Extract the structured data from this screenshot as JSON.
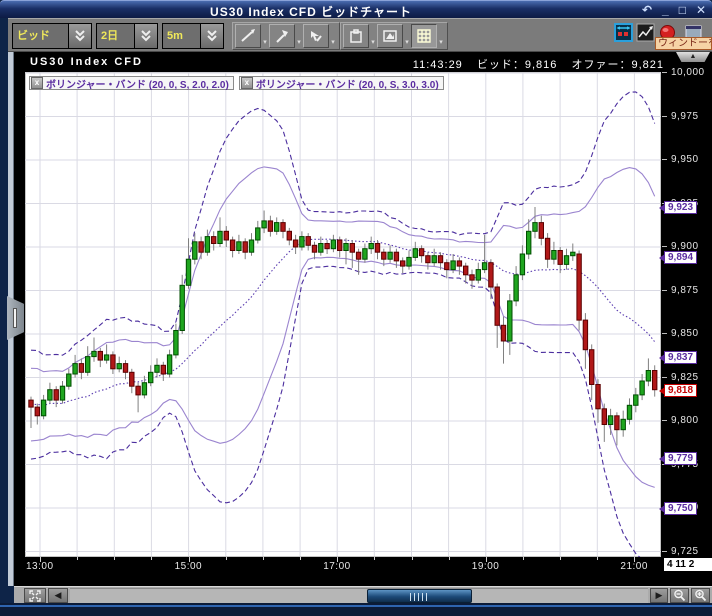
{
  "window": {
    "title": "US30 Index CFD ビッドチャート",
    "controls": {
      "restore": "↶",
      "minimize": "_",
      "maximize": "□",
      "close": "✕"
    }
  },
  "toolbar": {
    "dropdowns": [
      {
        "label": "ビッド"
      },
      {
        "label": "2日"
      },
      {
        "label": "5m"
      }
    ],
    "tooltip": "ウィンドーを"
  },
  "chart_header": {
    "symbol": "US30 Index CFD",
    "time": "11:43:29",
    "bid": "ビッド：9,816",
    "offer": "オファー：9,821",
    "collapse_arrow": "▲"
  },
  "indicators": [
    {
      "label": "ボリンジャー・バンド (20, 0, S, 2.0, 2.0)",
      "close": "x"
    },
    {
      "label": "ボリンジャー・バンド (20, 0, S, 3.0, 3.0)",
      "close": "x"
    }
  ],
  "date_box": "4 11 2",
  "scrollbar": {
    "left_arrow": "◀",
    "right_arrow": "▶"
  },
  "colors": {
    "up": "#1fa51f",
    "up_border": "#004d00",
    "down": "#b01818",
    "down_border": "#5a0000",
    "wick": "#808080",
    "band2": "#9b85cf",
    "band3": "#4b2e9e",
    "mid": "#5a3cb0",
    "grid": "#dadae4",
    "marker_band": "#5a2ca0",
    "marker_current": "#c40000",
    "accent_yellow": "#f0e95a"
  },
  "chart_data": {
    "type": "candlestick",
    "title": "US30 Index CFD ビッドチャート",
    "start_time": "13:00",
    "interval_min": 5,
    "x_ticks": [
      "13:00",
      "15:00",
      "17:00",
      "19:00",
      "21:00"
    ],
    "y_ticks": [
      "10,000",
      "9,975",
      "9,950",
      "9,925",
      "9,900",
      "9,875",
      "9,850",
      "9,825",
      "9,800",
      "9,775",
      "9,750",
      "9,725"
    ],
    "y_range": [
      9725,
      10000
    ],
    "grid": true,
    "bollinger": {
      "period": 20,
      "ma_type": "S",
      "deviations": [
        2.0,
        3.0
      ]
    },
    "pre_closes": [
      9820,
      9800,
      9825,
      9795,
      9810,
      9822,
      9798,
      9815,
      9805,
      9828,
      9793,
      9812,
      9820,
      9797,
      9808,
      9824,
      9799,
      9816,
      9803,
      9810
    ],
    "candles": [
      [
        9812,
        9814,
        9796,
        9808
      ],
      [
        9808,
        9810,
        9798,
        9803
      ],
      [
        9803,
        9815,
        9801,
        9812
      ],
      [
        9812,
        9822,
        9810,
        9818
      ],
      [
        9818,
        9820,
        9808,
        9812
      ],
      [
        9812,
        9823,
        9810,
        9820
      ],
      [
        9820,
        9830,
        9818,
        9827
      ],
      [
        9827,
        9838,
        9825,
        9833
      ],
      [
        9833,
        9836,
        9824,
        9828
      ],
      [
        9828,
        9843,
        9826,
        9837
      ],
      [
        9837,
        9848,
        9834,
        9840
      ],
      [
        9840,
        9842,
        9831,
        9835
      ],
      [
        9835,
        9844,
        9833,
        9838
      ],
      [
        9838,
        9840,
        9827,
        9830
      ],
      [
        9830,
        9837,
        9828,
        9833
      ],
      [
        9833,
        9835,
        9824,
        9828
      ],
      [
        9828,
        9830,
        9816,
        9820
      ],
      [
        9820,
        9822,
        9805,
        9815
      ],
      [
        9815,
        9826,
        9813,
        9822
      ],
      [
        9822,
        9832,
        9820,
        9828
      ],
      [
        9828,
        9836,
        9825,
        9832
      ],
      [
        9832,
        9834,
        9823,
        9827
      ],
      [
        9827,
        9841,
        9825,
        9838
      ],
      [
        9838,
        9856,
        9836,
        9852
      ],
      [
        9852,
        9884,
        9850,
        9878
      ],
      [
        9878,
        9905,
        9876,
        9893
      ],
      [
        9893,
        9908,
        9890,
        9903
      ],
      [
        9903,
        9906,
        9893,
        9897
      ],
      [
        9897,
        9910,
        9895,
        9906
      ],
      [
        9906,
        9909,
        9898,
        9902
      ],
      [
        9902,
        9917,
        9900,
        9909
      ],
      [
        9909,
        9912,
        9900,
        9904
      ],
      [
        9904,
        9906,
        9894,
        9898
      ],
      [
        9898,
        9907,
        9896,
        9903
      ],
      [
        9903,
        9905,
        9893,
        9897
      ],
      [
        9897,
        9908,
        9895,
        9904
      ],
      [
        9904,
        9915,
        9902,
        9911
      ],
      [
        9911,
        9921,
        9908,
        9915
      ],
      [
        9915,
        9918,
        9906,
        9909
      ],
      [
        9909,
        9917,
        9907,
        9914
      ],
      [
        9914,
        9916,
        9905,
        9909
      ],
      [
        9909,
        9911,
        9901,
        9904
      ],
      [
        9904,
        9907,
        9896,
        9900
      ],
      [
        9900,
        9909,
        9898,
        9906
      ],
      [
        9906,
        9908,
        9898,
        9901
      ],
      [
        9901,
        9903,
        9893,
        9897
      ],
      [
        9897,
        9906,
        9895,
        9902
      ],
      [
        9902,
        9904,
        9896,
        9899
      ],
      [
        9899,
        9907,
        9897,
        9904
      ],
      [
        9904,
        9906,
        9894,
        9898
      ],
      [
        9898,
        9905,
        9890,
        9902
      ],
      [
        9902,
        9904,
        9888,
        9897
      ],
      [
        9897,
        9899,
        9884,
        9893
      ],
      [
        9893,
        9902,
        9891,
        9899
      ],
      [
        9899,
        9906,
        9896,
        9902
      ],
      [
        9902,
        9904,
        9893,
        9897
      ],
      [
        9897,
        9899,
        9889,
        9893
      ],
      [
        9893,
        9901,
        9891,
        9897
      ],
      [
        9897,
        9899,
        9888,
        9892
      ],
      [
        9892,
        9894,
        9885,
        9889
      ],
      [
        9889,
        9898,
        9887,
        9894
      ],
      [
        9894,
        9903,
        9892,
        9899
      ],
      [
        9899,
        9901,
        9891,
        9895
      ],
      [
        9895,
        9897,
        9887,
        9891
      ],
      [
        9891,
        9899,
        9889,
        9895
      ],
      [
        9895,
        9897,
        9887,
        9891
      ],
      [
        9891,
        9893,
        9882,
        9887
      ],
      [
        9887,
        9896,
        9885,
        9892
      ],
      [
        9892,
        9894,
        9884,
        9889
      ],
      [
        9889,
        9891,
        9879,
        9884
      ],
      [
        9884,
        9887,
        9876,
        9881
      ],
      [
        9881,
        9891,
        9879,
        9887
      ],
      [
        9887,
        9907,
        9885,
        9891
      ],
      [
        9891,
        9893,
        9870,
        9877
      ],
      [
        9877,
        9879,
        9842,
        9855
      ],
      [
        9855,
        9860,
        9833,
        9846
      ],
      [
        9846,
        9873,
        9838,
        9869
      ],
      [
        9869,
        9889,
        9866,
        9884
      ],
      [
        9884,
        9901,
        9881,
        9896
      ],
      [
        9896,
        9916,
        9893,
        9909
      ],
      [
        9909,
        9923,
        9905,
        9914
      ],
      [
        9914,
        9918,
        9901,
        9905
      ],
      [
        9905,
        9908,
        9888,
        9893
      ],
      [
        9893,
        9903,
        9890,
        9898
      ],
      [
        9898,
        9900,
        9885,
        9890
      ],
      [
        9890,
        9899,
        9887,
        9895
      ],
      [
        9895,
        9902,
        9892,
        9897
      ],
      [
        9896,
        9898,
        9852,
        9858
      ],
      [
        9858,
        9862,
        9830,
        9841
      ],
      [
        9841,
        9844,
        9812,
        9821
      ],
      [
        9821,
        9824,
        9799,
        9807
      ],
      [
        9807,
        9810,
        9788,
        9798
      ],
      [
        9798,
        9807,
        9792,
        9803
      ],
      [
        9803,
        9805,
        9786,
        9795
      ],
      [
        9795,
        9806,
        9791,
        9801
      ],
      [
        9801,
        9813,
        9798,
        9809
      ],
      [
        9809,
        9819,
        9805,
        9815
      ],
      [
        9815,
        9827,
        9812,
        9823
      ],
      [
        9823,
        9836,
        9820,
        9829
      ],
      [
        9829,
        9832,
        9814,
        9818
      ]
    ],
    "markers": [
      {
        "value": 9923,
        "label": "9,923",
        "type": "band"
      },
      {
        "value": 9894,
        "label": "9,894",
        "type": "band"
      },
      {
        "value": 9837,
        "label": "9,837",
        "type": "band"
      },
      {
        "value": 9818,
        "label": "9,818",
        "type": "current"
      },
      {
        "value": 9779,
        "label": "9,779",
        "type": "band"
      },
      {
        "value": 9750,
        "label": "9,750",
        "type": "band"
      }
    ]
  }
}
